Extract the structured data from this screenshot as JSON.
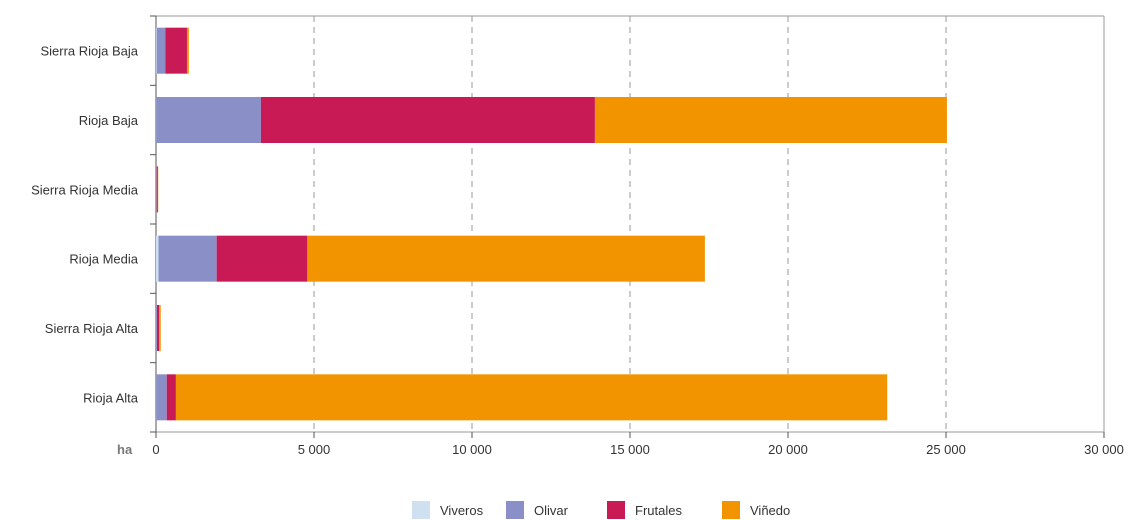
{
  "chart_data": {
    "type": "bar",
    "orientation": "horizontal",
    "stacked": true,
    "categories": [
      "Sierra Rioja Baja",
      "Rioja Baja",
      "Sierra Rioja Media",
      "Rioja Media",
      "Sierra Rioja Alta",
      "Rioja Alta"
    ],
    "series": [
      {
        "name": "Viveros",
        "color": "#cfe0f1",
        "values": [
          20,
          10,
          10,
          80,
          10,
          10
        ]
      },
      {
        "name": "Olivar",
        "color": "#8a8fc7",
        "values": [
          280,
          3310,
          10,
          1840,
          20,
          330
        ]
      },
      {
        "name": "Frutales",
        "color": "#c81a54",
        "values": [
          680,
          10570,
          40,
          2870,
          70,
          290
        ]
      },
      {
        "name": "Viñedo",
        "color": "#f29400",
        "values": [
          60,
          11140,
          10,
          12580,
          50,
          22510
        ]
      }
    ],
    "xlabel": "ha",
    "xlim": [
      0,
      30000
    ],
    "xticks": [
      0,
      5000,
      10000,
      15000,
      20000,
      25000,
      30000
    ],
    "xtick_labels": [
      "0",
      "5 000",
      "10 000",
      "15 000",
      "20 000",
      "25 000",
      "30 000"
    ],
    "grid": "vertical dashed",
    "legend": "bottom"
  }
}
